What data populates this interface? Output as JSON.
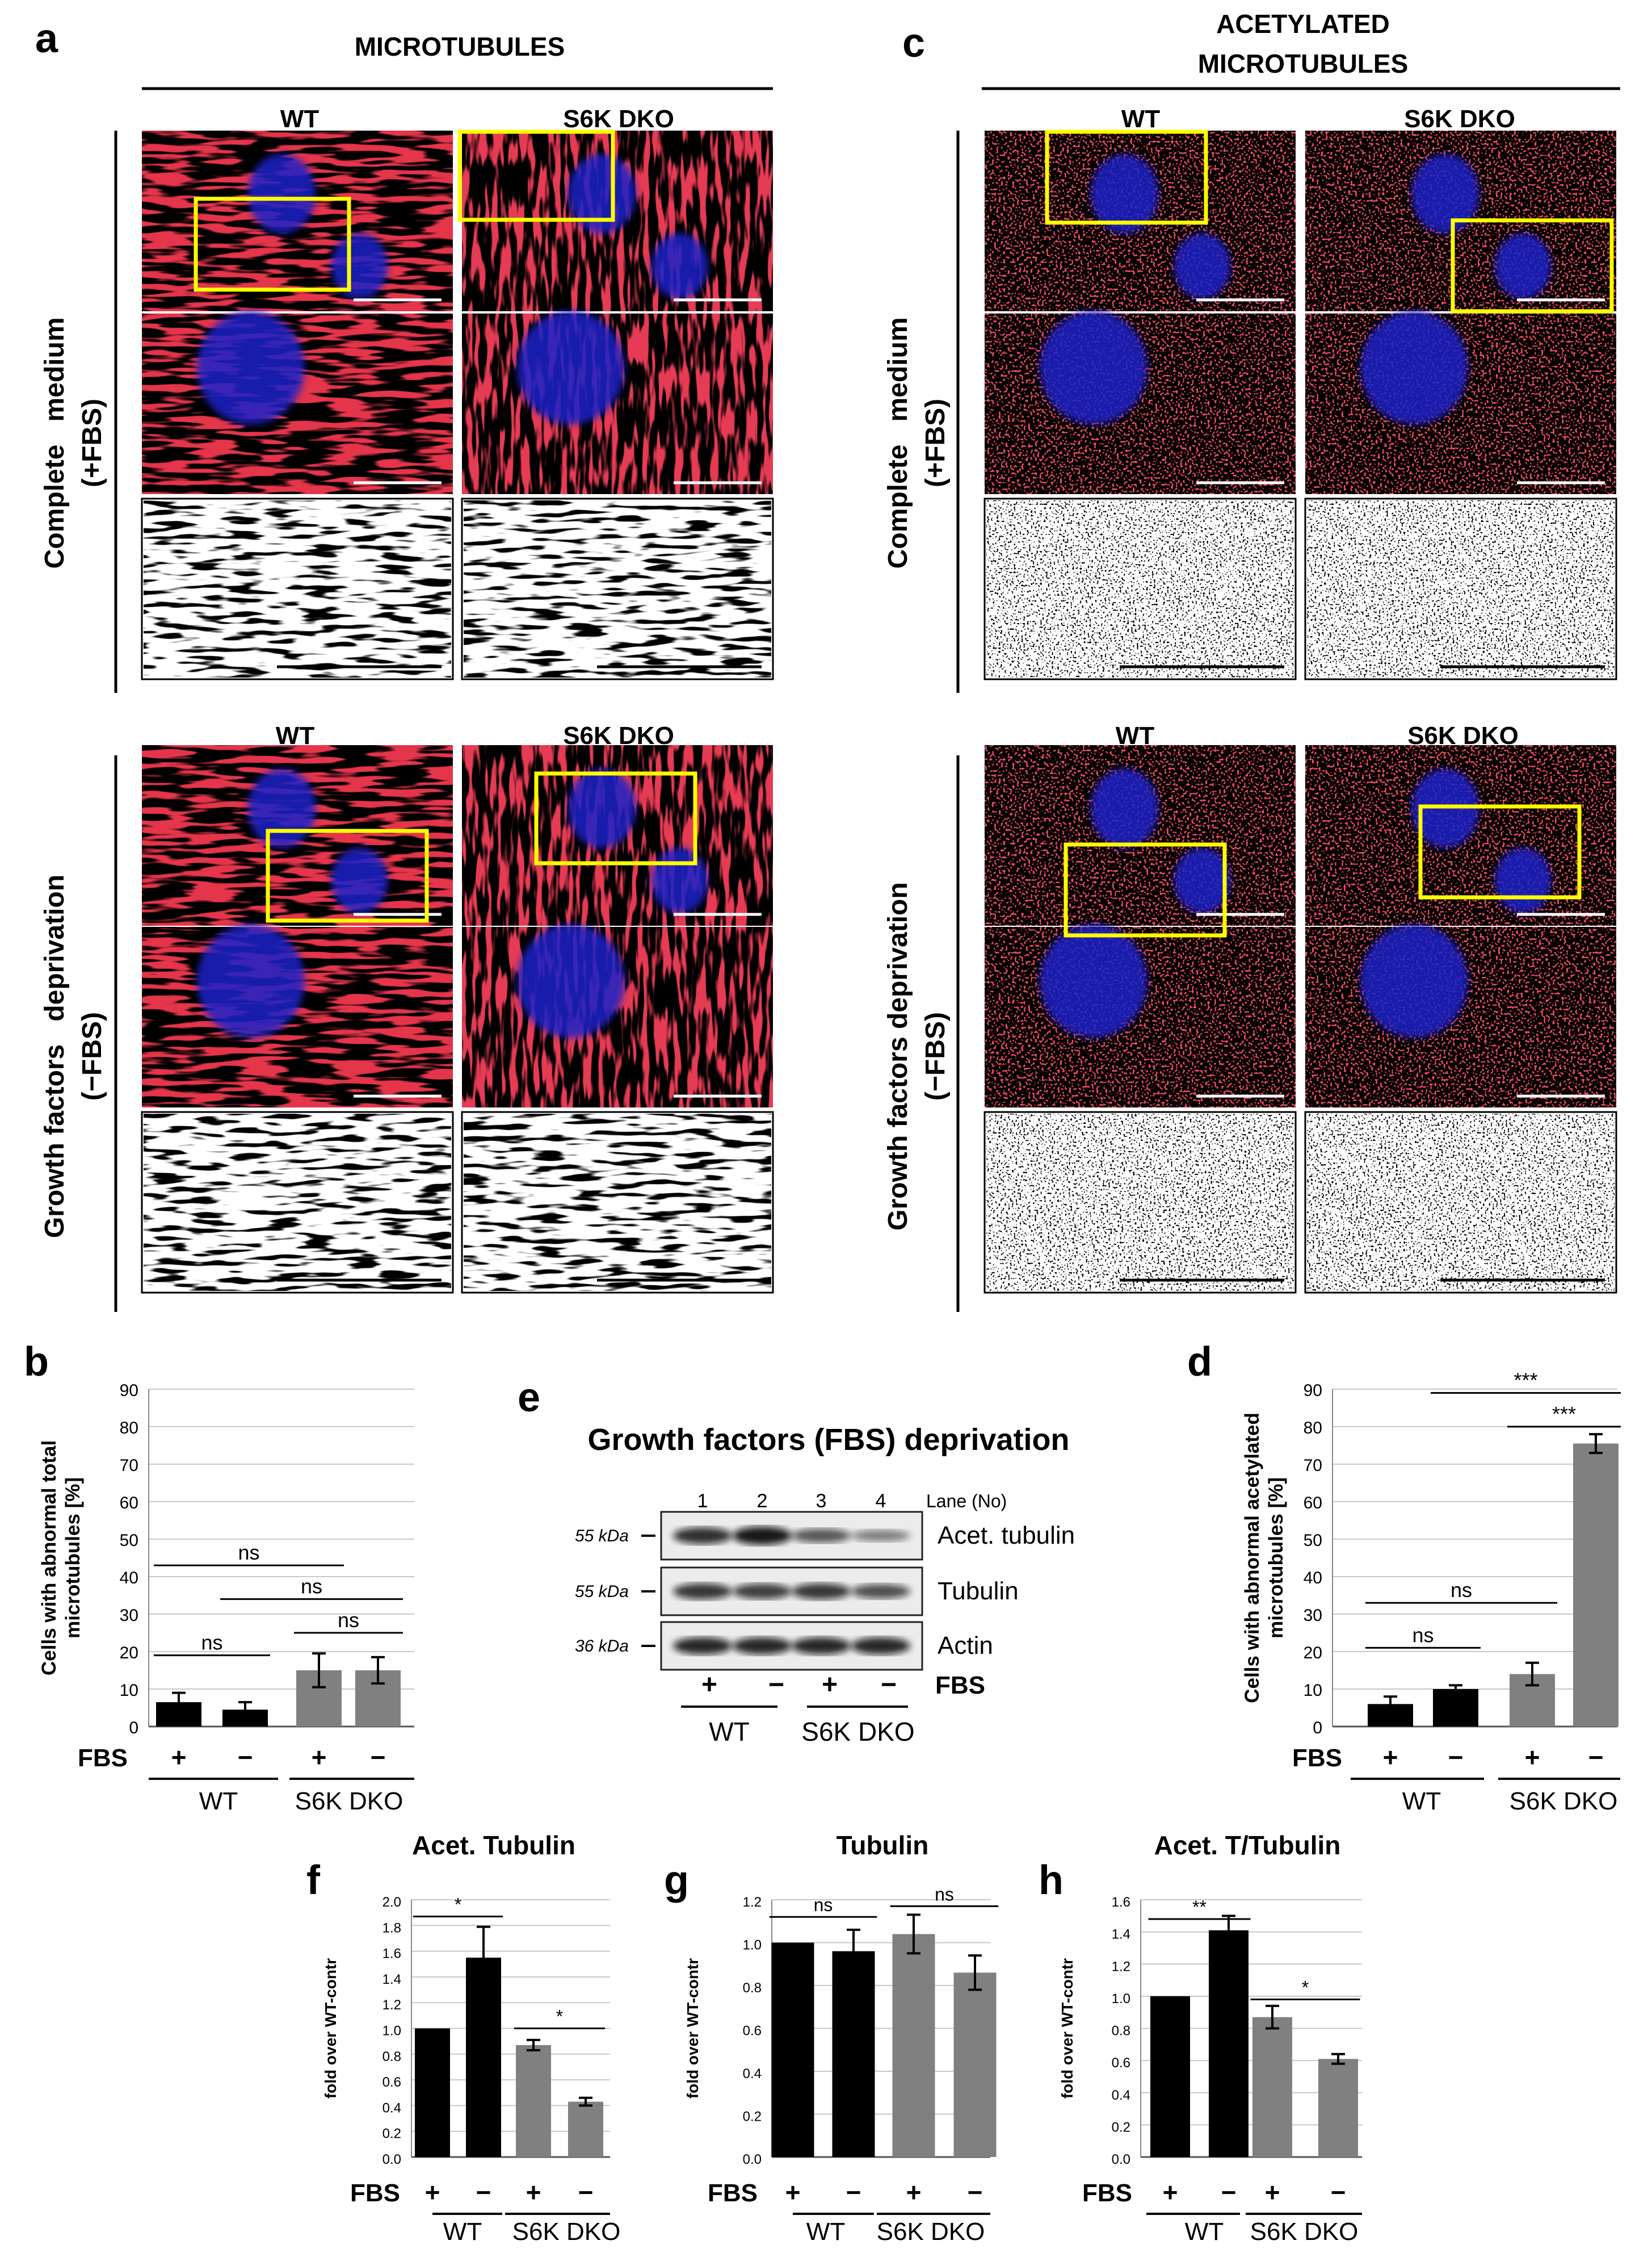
{
  "panel_labels": {
    "a": "a",
    "b": "b",
    "c": "c",
    "d": "d",
    "e": "e",
    "f": "f",
    "g": "g",
    "h": "h"
  },
  "colors": {
    "black_bar": "#000000",
    "gray_bar": "#808080",
    "frame_yellow": "#ffff00",
    "micro_red": "#e0101c",
    "nucleus_blue": "#1a22c8"
  },
  "micrographs": {
    "a": {
      "title": "MICROTUBULES",
      "top_group": {
        "col_left": "WT",
        "col_right": "S6K DKO",
        "row_label_1": "Complete   medium",
        "row_label_2": "(+FBS)"
      },
      "bottom_group": {
        "col_left": "WT",
        "col_right": "S6K DKO",
        "row_label_1": "Growth factors   deprivation",
        "row_label_2": "(−FBS)"
      }
    },
    "c": {
      "title_1": "ACETYLATED",
      "title_2": "MICROTUBULES",
      "top_group": {
        "col_left": "WT",
        "col_right": "S6K DKO",
        "row_label_1": "Complete   medium",
        "row_label_2": "(+FBS)"
      },
      "bottom_group": {
        "col_left": "WT",
        "col_right": "S6K DKO",
        "row_label_1": "Growth factors deprivation",
        "row_label_2": "(−FBS)"
      }
    }
  },
  "blot": {
    "title": "Growth factors (FBS) deprivation",
    "lanes": [
      "1",
      "2",
      "3",
      "4"
    ],
    "lane_header": "Lane (No)",
    "rows": [
      {
        "kda": "55 kDa",
        "name": "Acet. tubulin",
        "intensities": [
          0.85,
          1.0,
          0.6,
          0.35
        ]
      },
      {
        "kda": "55 kDa",
        "name": "Tubulin",
        "intensities": [
          0.8,
          0.75,
          0.8,
          0.65
        ]
      },
      {
        "kda": "36 kDa",
        "name": "Actin",
        "intensities": [
          0.9,
          0.9,
          0.9,
          0.9
        ]
      }
    ],
    "fbs_label": "FBS",
    "fbs_signs": [
      "+",
      "−",
      "+",
      "−"
    ],
    "groups": [
      "WT",
      "S6K DKO"
    ]
  },
  "chart_data": [
    {
      "id": "b",
      "type": "bar",
      "title": "",
      "ylabel_1": "Cells with abnormal total",
      "ylabel_2": "microtubules [%]",
      "ylim": [
        0,
        90
      ],
      "yticks": [
        "0",
        "10",
        "20",
        "30",
        "40",
        "50",
        "60",
        "70",
        "80",
        "90"
      ],
      "categories": [
        "WT +",
        "WT −",
        "S6K DKO +",
        "S6K DKO −"
      ],
      "values": [
        6.5,
        4.5,
        15,
        15
      ],
      "errors": [
        2.5,
        2,
        4.5,
        3.5
      ],
      "fbs_label": "FBS",
      "fbs_signs": [
        "+",
        "−",
        "+",
        "−"
      ],
      "groups": [
        "WT",
        "S6K DKO"
      ],
      "annotations": [
        {
          "text": "ns",
          "from": 0,
          "to": 2,
          "y": 43
        },
        {
          "text": "ns",
          "from": 1,
          "to": 3,
          "y": 34
        },
        {
          "text": "ns",
          "from": 2,
          "to": 3,
          "y": 25
        },
        {
          "text": "ns",
          "from": 0,
          "to": 1,
          "y": 19
        }
      ]
    },
    {
      "id": "d",
      "type": "bar",
      "title": "",
      "ylabel_1": "Cells with abnormal acetylated",
      "ylabel_2": "microtubules [%]",
      "ylim": [
        0,
        90
      ],
      "yticks": [
        "0",
        "10",
        "20",
        "30",
        "40",
        "50",
        "60",
        "70",
        "80",
        "90"
      ],
      "categories": [
        "WT +",
        "WT −",
        "S6K DKO +",
        "S6K DKO −"
      ],
      "values": [
        6,
        10,
        14,
        75.5
      ],
      "errors": [
        2,
        1,
        3,
        2.5
      ],
      "fbs_label": "FBS",
      "fbs_signs": [
        "+",
        "−",
        "+",
        "−"
      ],
      "groups": [
        "WT",
        "S6K DKO"
      ],
      "annotations": [
        {
          "text": "***",
          "from": 1,
          "to": 3,
          "y": 89
        },
        {
          "text": "***",
          "from": 2,
          "to": 3,
          "y": 80
        },
        {
          "text": "ns",
          "from": 0,
          "to": 2,
          "y": 33
        },
        {
          "text": "ns",
          "from": 0,
          "to": 1,
          "y": 21
        }
      ]
    },
    {
      "id": "f",
      "type": "bar",
      "title": "Acet. Tubulin",
      "ylabel_1": "fold over WT-contr",
      "ylabel_2": "",
      "ylim": [
        0,
        2.0
      ],
      "yticks": [
        "0.0",
        "0.2",
        "0.4",
        "0.6",
        "0.8",
        "1.0",
        "1.2",
        "1.4",
        "1.6",
        "1.8",
        "2.0"
      ],
      "categories": [
        "WT +",
        "WT −",
        "S6K DKO +",
        "S6K DKO −"
      ],
      "values": [
        1.0,
        1.55,
        0.87,
        0.43
      ],
      "errors": [
        0,
        0.24,
        0.04,
        0.03
      ],
      "fbs_label": "FBS",
      "fbs_signs": [
        "+",
        "−",
        "+",
        "−"
      ],
      "groups": [
        "WT",
        "S6K DKO"
      ],
      "annotations": [
        {
          "text": "*",
          "from": 0,
          "to": 1,
          "y": 1.87
        },
        {
          "text": "*",
          "from": 2,
          "to": 3,
          "y": 1.0
        }
      ]
    },
    {
      "id": "g",
      "type": "bar",
      "title": "Tubulin",
      "ylabel_1": "fold over WT-contr",
      "ylabel_2": "",
      "ylim": [
        0,
        1.2
      ],
      "yticks": [
        "0.0",
        "0.2",
        "0.4",
        "0.6",
        "0.8",
        "1.0",
        "1.2"
      ],
      "categories": [
        "WT +",
        "WT −",
        "S6K DKO +",
        "S6K DKO −"
      ],
      "values": [
        1.0,
        0.96,
        1.04,
        0.86
      ],
      "errors": [
        0,
        0.1,
        0.09,
        0.08
      ],
      "fbs_label": "FBS",
      "fbs_signs": [
        "+",
        "−",
        "+",
        "−"
      ],
      "groups": [
        "WT",
        "S6K DKO"
      ],
      "annotations": [
        {
          "text": "ns",
          "from": 0,
          "to": 1,
          "y": 1.12
        },
        {
          "text": "ns",
          "from": 2,
          "to": 3,
          "y": 1.17
        }
      ]
    },
    {
      "id": "h",
      "type": "bar",
      "title": "Acet. T/Tubulin",
      "ylabel_1": "fold over WT-contr",
      "ylabel_2": "",
      "ylim": [
        0,
        1.6
      ],
      "yticks": [
        "0.0",
        "0.2",
        "0.4",
        "0.6",
        "0.8",
        "1.0",
        "1.2",
        "1.4",
        "1.6"
      ],
      "categories": [
        "WT +",
        "WT −",
        "S6K DKO +",
        "S6K DKO −"
      ],
      "values": [
        1.0,
        1.41,
        0.87,
        0.61
      ],
      "errors": [
        0,
        0.09,
        0.07,
        0.03
      ],
      "fbs_label": "FBS",
      "fbs_signs": [
        "+",
        "−",
        "+",
        "−"
      ],
      "groups": [
        "WT",
        "S6K DKO"
      ],
      "annotations": [
        {
          "text": "**",
          "from": 0,
          "to": 1,
          "y": 1.48
        },
        {
          "text": "*",
          "from": 2,
          "to": 3,
          "y": 0.98
        }
      ]
    }
  ]
}
